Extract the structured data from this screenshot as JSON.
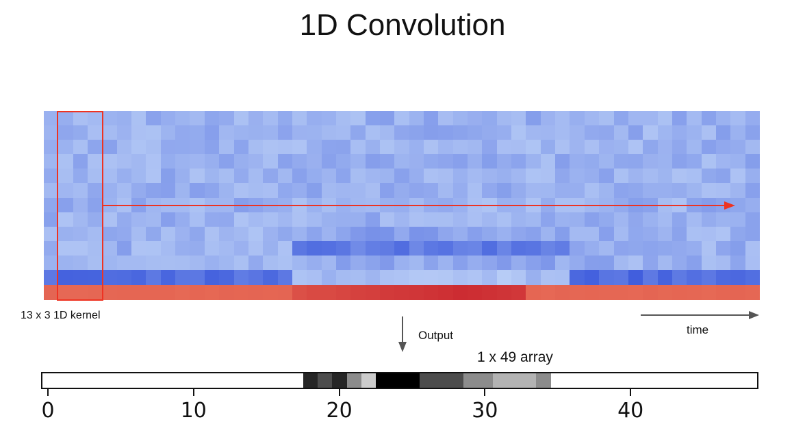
{
  "title": "1D Convolution",
  "kernel_label": "13 x 3 1D kernel",
  "time_label": "time",
  "output_label": "Output",
  "array_label": "1 x 49 array",
  "colors": {
    "kernel_box": "#ee3322",
    "arrow": "#555555",
    "sweep_arrow": "#ee3322",
    "heat_low": "#b5cdf5",
    "heat_mid": "#4a6fe0",
    "heat_high": "#c92a2a"
  },
  "chart_data": {
    "type": "heatmap",
    "rows": 13,
    "cols": 49,
    "output_array": [
      0,
      0,
      0,
      0,
      0,
      0,
      0,
      0,
      0,
      0,
      0,
      0,
      0,
      0,
      0,
      0,
      0,
      0,
      0.85,
      0.7,
      0.85,
      0.45,
      0.2,
      1,
      1,
      1,
      0.7,
      0.7,
      0.7,
      0.45,
      0.45,
      0.3,
      0.3,
      0.3,
      0.45,
      0,
      0,
      0,
      0,
      0,
      0,
      0,
      0,
      0,
      0,
      0,
      0,
      0,
      0
    ],
    "x_ticks": [
      0,
      10,
      20,
      30,
      40
    ],
    "kernel_cols": 3
  }
}
